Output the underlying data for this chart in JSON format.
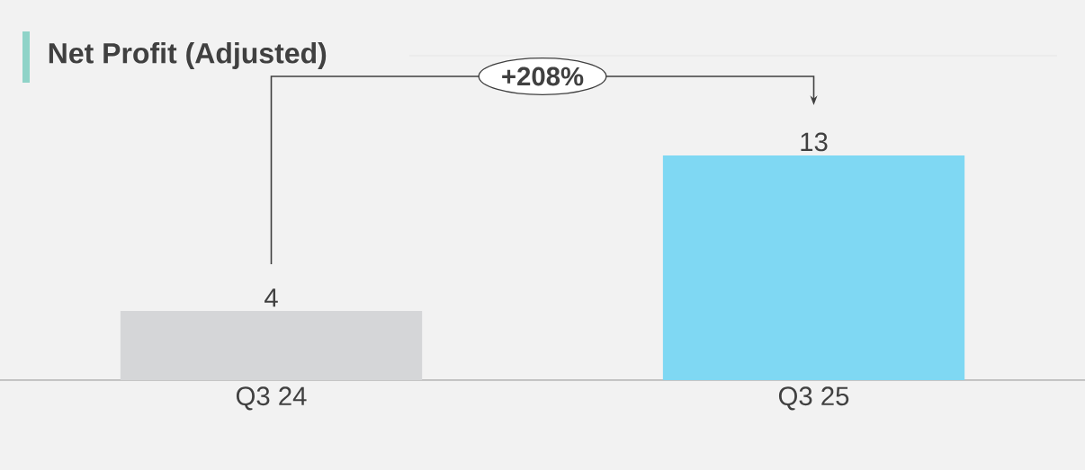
{
  "chart_data": {
    "type": "bar",
    "title": "Net Profit (Adjusted)",
    "categories": [
      "Q3 24",
      "Q3 25"
    ],
    "values": [
      4,
      13
    ],
    "colors": [
      "#d5d6d8",
      "#7fd8f3"
    ],
    "data_labels": true,
    "annotations": [
      "+208%"
    ]
  }
}
